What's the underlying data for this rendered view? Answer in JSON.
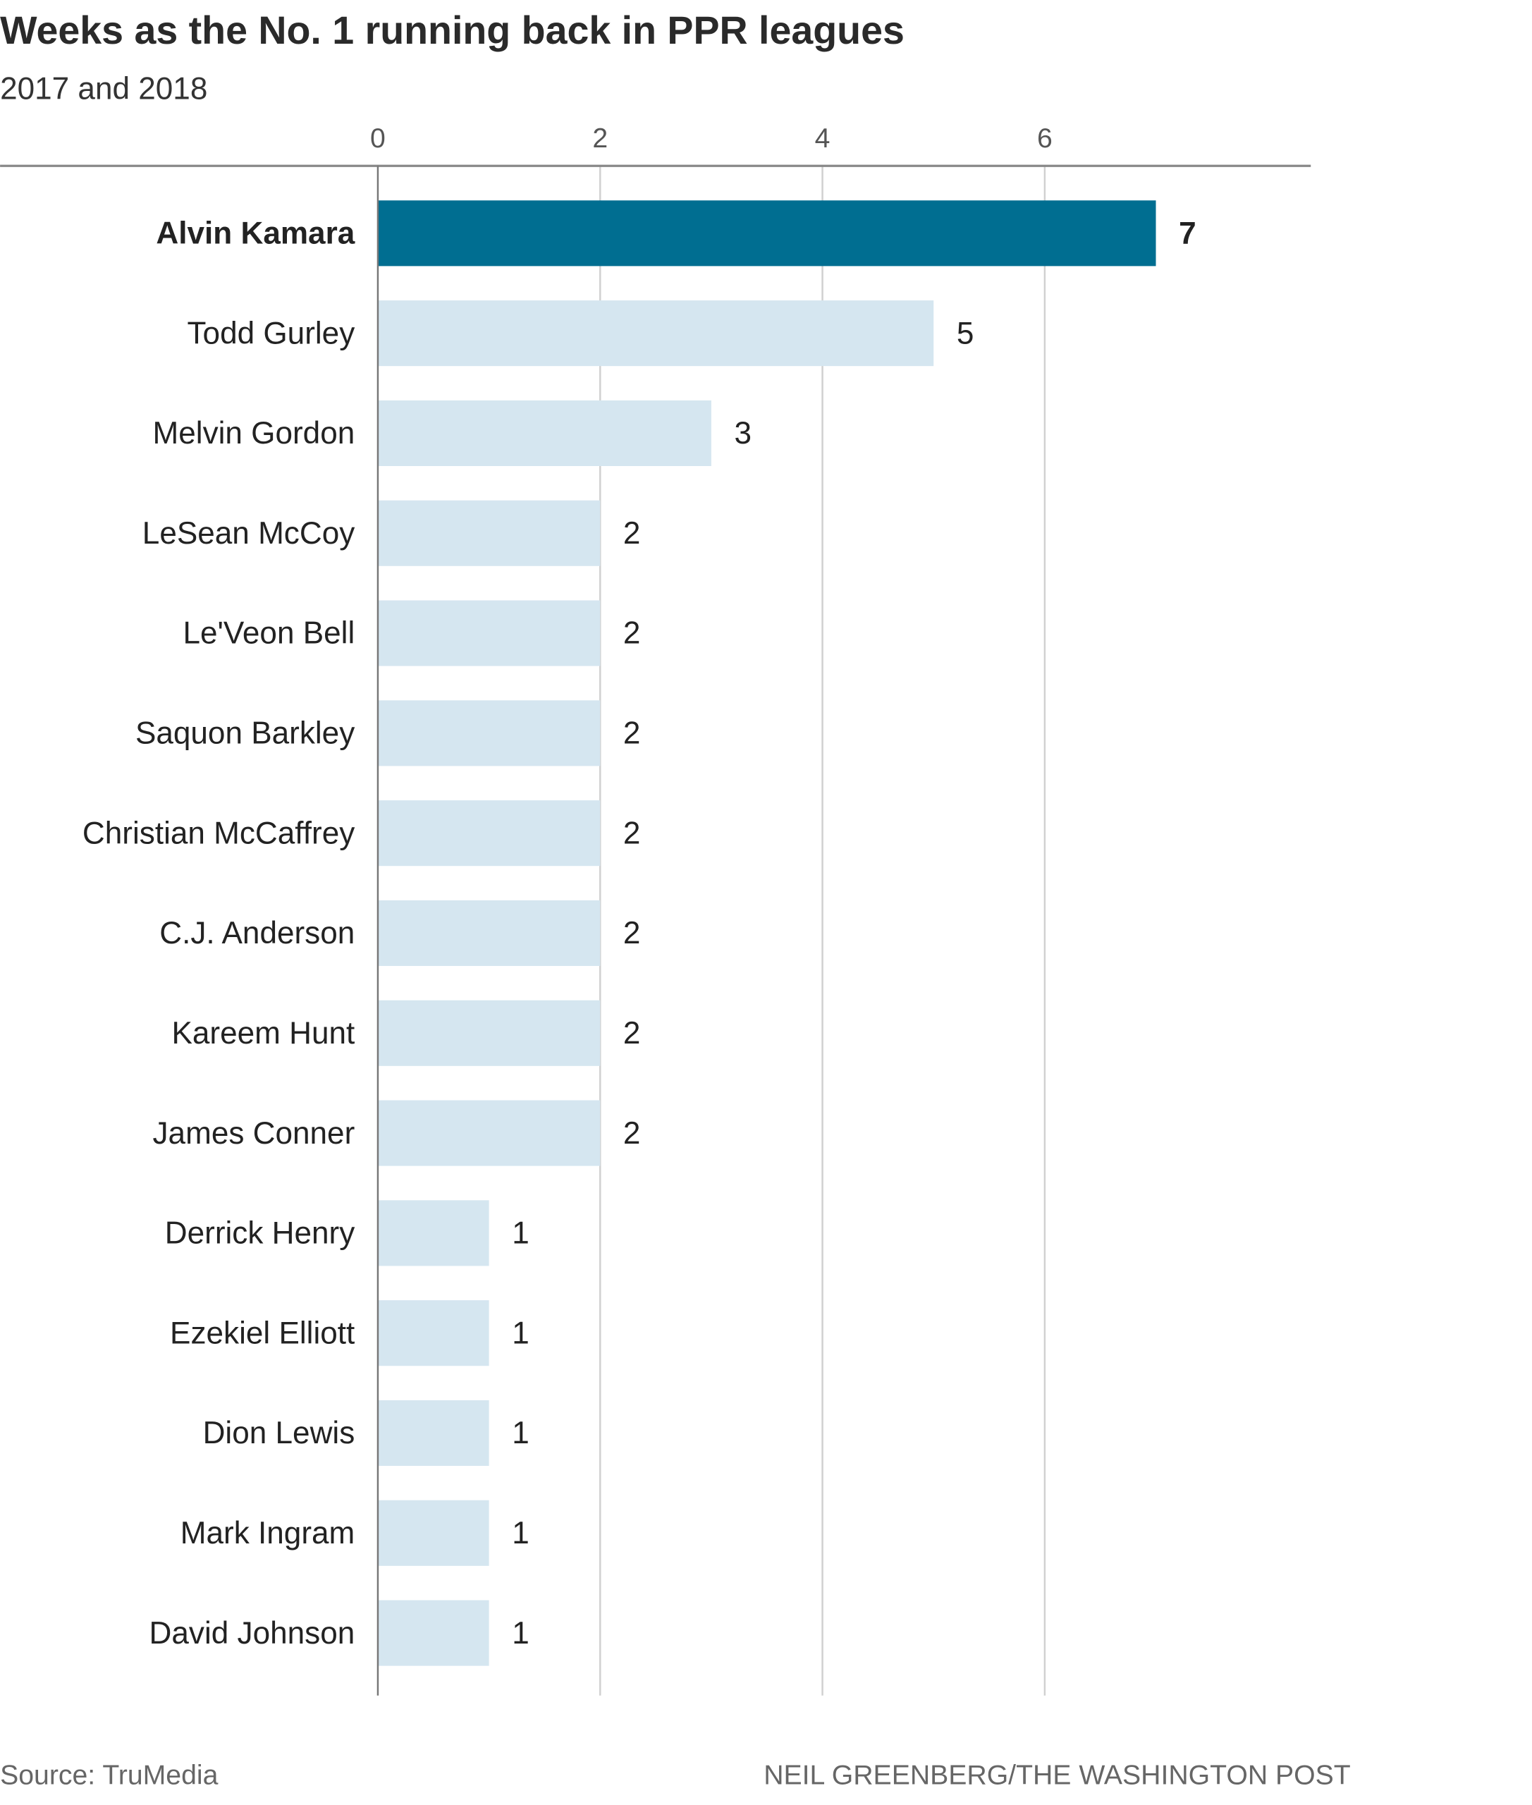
{
  "chart_data": {
    "type": "bar",
    "orientation": "horizontal",
    "title": "Weeks as the No. 1 running back in PPR leagues",
    "subtitle": "2017 and 2018",
    "categories": [
      "Alvin Kamara",
      "Todd Gurley",
      "Melvin Gordon",
      "LeSean McCoy",
      "Le'Veon Bell",
      "Saquon Barkley",
      "Christian McCaffrey",
      "C.J. Anderson",
      "Kareem Hunt",
      "James Conner",
      "Derrick Henry",
      "Ezekiel Elliott",
      "Dion Lewis",
      "Mark Ingram",
      "David Johnson"
    ],
    "values": [
      7,
      5,
      3,
      2,
      2,
      2,
      2,
      2,
      2,
      2,
      1,
      1,
      1,
      1,
      1
    ],
    "highlight": "Alvin Kamara",
    "xticks": [
      0,
      2,
      4,
      6
    ],
    "xlim": [
      0,
      8.4
    ],
    "grid": true,
    "xlabel": "",
    "ylabel": "",
    "colors": {
      "highlight": "#006e91",
      "default": "#d5e6f0"
    }
  },
  "footer": {
    "source": "Source: TruMedia",
    "credit": "NEIL GREENBERG/THE WASHINGTON POST"
  }
}
